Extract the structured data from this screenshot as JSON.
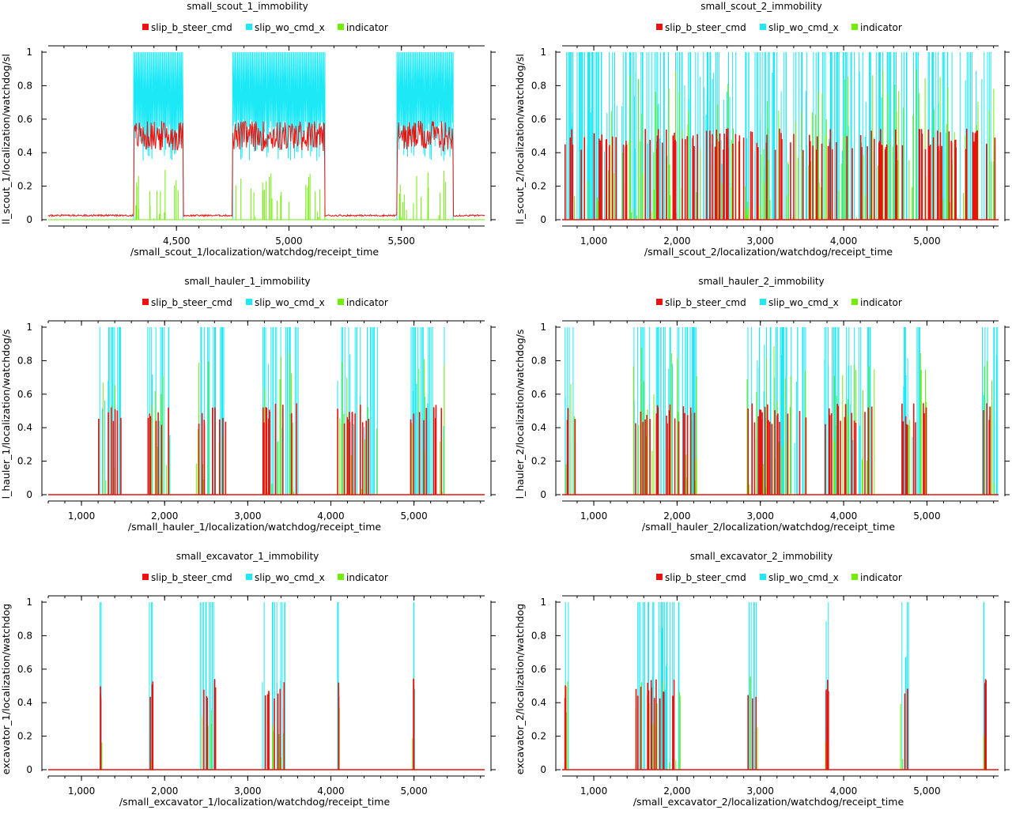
{
  "colors": {
    "slip_b_steer_cmd": "#e8130f",
    "slip_wo_cmd_x": "#1de9f6",
    "indicator": "#70ee07"
  },
  "chart_data": [
    {
      "type": "line",
      "title": "small_scout_1_immobility",
      "xlabel": "/small_scout_1/localization/watchdog/receipt_time",
      "ylabel": "ll_scout_1/localization/watchdog/sl",
      "xlim": [
        3930,
        5870
      ],
      "ylim": [
        0,
        1
      ],
      "xticks": [
        4500,
        5000,
        5500
      ],
      "xtick_labels": [
        "4,500",
        "5,000",
        "5,500"
      ],
      "yticks": [
        0,
        0.2,
        0.4,
        0.6,
        0.8,
        1
      ],
      "ytick_labels": [
        "0",
        "0.2",
        "0.4",
        "0.6",
        "0.8",
        "1"
      ],
      "legend": [
        "slip_b_steer_cmd",
        "slip_wo_cmd_x",
        "indicator"
      ],
      "active": [
        [
          4310,
          4530
        ],
        [
          4750,
          5160
        ],
        [
          5480,
          5730
        ]
      ],
      "series": [
        {
          "name": "slip_b_steer_cmd",
          "color": "#e8130f",
          "style": "continuous",
          "base": 0.02,
          "level": 0.5
        },
        {
          "name": "slip_wo_cmd_x",
          "color": "#1de9f6",
          "style": "band",
          "level": 0.6
        },
        {
          "name": "indicator",
          "color": "#70ee07",
          "style": "spikes",
          "level": 0.3
        }
      ]
    },
    {
      "type": "line",
      "title": "small_scout_2_immobility",
      "xlabel": "/small_scout_2/localization/watchdog/receipt_time",
      "ylabel": "ll_scout_2/localization/watchdog/sl",
      "xlim": [
        620,
        5860
      ],
      "ylim": [
        0,
        1
      ],
      "xticks": [
        1000,
        2000,
        3000,
        4000,
        5000
      ],
      "xtick_labels": [
        "1,000",
        "2,000",
        "3,000",
        "4,000",
        "5,000"
      ],
      "yticks": [
        0,
        0.2,
        0.4,
        0.6,
        0.8,
        1
      ],
      "ytick_labels": [
        "0",
        "0.2",
        "0.4",
        "0.6",
        "0.8",
        "1"
      ],
      "legend": [
        "slip_b_steer_cmd",
        "slip_wo_cmd_x",
        "indicator"
      ],
      "active": [
        [
          650,
          5850
        ]
      ],
      "series": [
        {
          "name": "slip_b_steer_cmd",
          "color": "#e8130f",
          "style": "spikes",
          "level": 0.52
        },
        {
          "name": "slip_wo_cmd_x",
          "color": "#1de9f6",
          "style": "spikes",
          "level": 1
        },
        {
          "name": "indicator",
          "color": "#70ee07",
          "style": "spikes",
          "level": 0.9
        }
      ]
    },
    {
      "type": "line",
      "title": "small_hauler_1_immobility",
      "xlabel": "/small_hauler_1/localization/watchdog/receipt_time",
      "ylabel": "l_hauler_1/localization/watchdog/s",
      "xlim": [
        600,
        5850
      ],
      "ylim": [
        0,
        1
      ],
      "xticks": [
        1000,
        2000,
        3000,
        4000,
        5000
      ],
      "xtick_labels": [
        "1,000",
        "2,000",
        "3,000",
        "4,000",
        "5,000"
      ],
      "yticks": [
        0,
        0.2,
        0.4,
        0.6,
        0.8,
        1
      ],
      "ytick_labels": [
        "0",
        "0.2",
        "0.4",
        "0.6",
        "0.8",
        "1"
      ],
      "legend": [
        "slip_b_steer_cmd",
        "slip_wo_cmd_x",
        "indicator"
      ],
      "active": [
        [
          1200,
          1480
        ],
        [
          1780,
          2080
        ],
        [
          2380,
          2740
        ],
        [
          3180,
          3620
        ],
        [
          4080,
          4560
        ],
        [
          4960,
          5380
        ]
      ],
      "series": [
        {
          "name": "slip_b_steer_cmd",
          "color": "#e8130f",
          "style": "spikes",
          "level": 0.52
        },
        {
          "name": "slip_wo_cmd_x",
          "color": "#1de9f6",
          "style": "spikes",
          "level": 1
        },
        {
          "name": "indicator",
          "color": "#70ee07",
          "style": "spikes",
          "level": 0.85
        }
      ]
    },
    {
      "type": "line",
      "title": "small_hauler_2_immobility",
      "xlabel": "/small_hauler_2/localization/watchdog/receipt_time",
      "ylabel": "l_hauler_2/localization/watchdog/s",
      "xlim": [
        620,
        5860
      ],
      "ylim": [
        0,
        1
      ],
      "xticks": [
        1000,
        2000,
        3000,
        4000,
        5000
      ],
      "xtick_labels": [
        "1,000",
        "2,000",
        "3,000",
        "4,000",
        "5,000"
      ],
      "yticks": [
        0,
        0.2,
        0.4,
        0.6,
        0.8,
        1
      ],
      "ytick_labels": [
        "0",
        "0.2",
        "0.4",
        "0.6",
        "0.8",
        "1"
      ],
      "legend": [
        "slip_b_steer_cmd",
        "slip_wo_cmd_x",
        "indicator"
      ],
      "active": [
        [
          650,
          780
        ],
        [
          1460,
          2250
        ],
        [
          2830,
          3600
        ],
        [
          3770,
          4380
        ],
        [
          4680,
          5060
        ],
        [
          5660,
          5850
        ]
      ],
      "series": [
        {
          "name": "slip_b_steer_cmd",
          "color": "#e8130f",
          "style": "spikes",
          "level": 0.52
        },
        {
          "name": "slip_wo_cmd_x",
          "color": "#1de9f6",
          "style": "spikes",
          "level": 1
        },
        {
          "name": "indicator",
          "color": "#70ee07",
          "style": "spikes",
          "level": 0.9
        }
      ]
    },
    {
      "type": "line",
      "title": "small_excavator_1_immobility",
      "xlabel": "/small_excavator_1/localization/watchdog/receipt_time",
      "ylabel": "excavator_1/localization/watchdog",
      "xlim": [
        600,
        5850
      ],
      "ylim": [
        0,
        1
      ],
      "xticks": [
        1000,
        2000,
        3000,
        4000,
        5000
      ],
      "xtick_labels": [
        "1,000",
        "2,000",
        "3,000",
        "4,000",
        "5,000"
      ],
      "yticks": [
        0,
        0.2,
        0.4,
        0.6,
        0.8,
        1
      ],
      "ytick_labels": [
        "0",
        "0.2",
        "0.4",
        "0.6",
        "0.8",
        "1"
      ],
      "legend": [
        "slip_b_steer_cmd",
        "slip_wo_cmd_x",
        "indicator"
      ],
      "active": [
        [
          1220,
          1250
        ],
        [
          1810,
          1860
        ],
        [
          2400,
          2620
        ],
        [
          3170,
          3460
        ],
        [
          4080,
          4110
        ],
        [
          4980,
          5010
        ]
      ],
      "series": [
        {
          "name": "slip_b_steer_cmd",
          "color": "#e8130f",
          "style": "spikes",
          "level": 0.52
        },
        {
          "name": "slip_wo_cmd_x",
          "color": "#1de9f6",
          "style": "spikes",
          "level": 1
        },
        {
          "name": "indicator",
          "color": "#70ee07",
          "style": "spikes",
          "level": 0.4
        }
      ]
    },
    {
      "type": "line",
      "title": "small_excavator_2_immobility",
      "xlabel": "/small_excavator_2/localization/watchdog/receipt_time",
      "ylabel": "excavator_2/localization/watchdog",
      "xlim": [
        620,
        5860
      ],
      "ylim": [
        0,
        1
      ],
      "xticks": [
        1000,
        2000,
        3000,
        4000,
        5000
      ],
      "xtick_labels": [
        "1,000",
        "2,000",
        "3,000",
        "4,000",
        "5,000"
      ],
      "yticks": [
        0,
        0.2,
        0.4,
        0.6,
        0.8,
        1
      ],
      "ytick_labels": [
        "0",
        "0.2",
        "0.4",
        "0.6",
        "0.8",
        "1"
      ],
      "legend": [
        "slip_b_steer_cmd",
        "slip_wo_cmd_x",
        "indicator"
      ],
      "active": [
        [
          650,
          700
        ],
        [
          1460,
          2040
        ],
        [
          2850,
          2970
        ],
        [
          3780,
          3830
        ],
        [
          4680,
          4780
        ],
        [
          5680,
          5710
        ]
      ],
      "series": [
        {
          "name": "slip_b_steer_cmd",
          "color": "#e8130f",
          "style": "spikes",
          "level": 0.52
        },
        {
          "name": "slip_wo_cmd_x",
          "color": "#1de9f6",
          "style": "spikes",
          "level": 1
        },
        {
          "name": "indicator",
          "color": "#70ee07",
          "style": "spikes",
          "level": 0.6
        }
      ]
    }
  ]
}
